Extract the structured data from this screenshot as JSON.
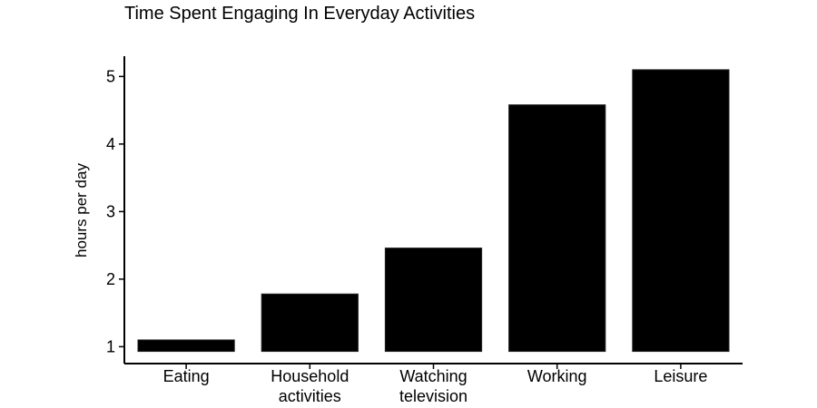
{
  "chart_data": {
    "type": "bar",
    "title": "Time Spent Engaging In Everyday Activities",
    "xlabel": "",
    "ylabel": "hours per day",
    "categories": [
      [
        "Eating"
      ],
      [
        "Household",
        "activities"
      ],
      [
        "Watching",
        "television"
      ],
      [
        "Working"
      ],
      [
        "Leisure"
      ]
    ],
    "bar_base": 0.93,
    "values": [
      1.1,
      1.78,
      2.46,
      4.58,
      5.1
    ],
    "yticks": [
      1,
      2,
      3,
      4,
      5
    ],
    "ylim": [
      0.75,
      5.3
    ],
    "bar_color": "#000000",
    "grid": false,
    "legend": "none"
  }
}
